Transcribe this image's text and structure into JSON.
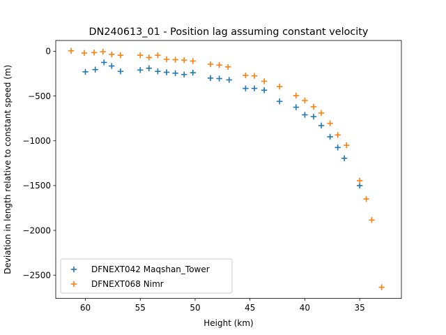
{
  "chart_data": {
    "type": "scatter",
    "title": "DN240613_01 - Position lag assuming constant velocity",
    "xlabel": "Height (km)",
    "ylabel": "Deviation in length relative to constant speed (m)",
    "xlim": [
      62.7,
      31.2
    ],
    "ylim": [
      -2760,
      120
    ],
    "x_invert": true,
    "xticks": [
      60,
      55,
      50,
      45,
      40,
      35
    ],
    "yticks": [
      0,
      -500,
      -1000,
      -1500,
      -2000,
      -2500
    ],
    "xtick_labels": [
      "60",
      "55",
      "50",
      "45",
      "40",
      "35"
    ],
    "ytick_labels": [
      "0",
      "−500",
      "−1000",
      "−1500",
      "−2000",
      "−2500"
    ],
    "marker": "+",
    "grid": false,
    "legend_position": "lower-left",
    "series": [
      {
        "name": "DFNEXT042 Maqshan_Tower",
        "color": "#1f77b4",
        "x": [
          60.0,
          59.1,
          58.3,
          57.6,
          56.8,
          55.0,
          54.2,
          53.4,
          52.6,
          51.8,
          51.0,
          50.2,
          48.6,
          47.8,
          46.9,
          45.4,
          44.6,
          43.7,
          42.3,
          40.8,
          40.0,
          39.2,
          38.5,
          37.7,
          37.0,
          36.4,
          35.0
        ],
        "y": [
          -230,
          -205,
          -125,
          -165,
          -225,
          -210,
          -190,
          -225,
          -235,
          -245,
          -260,
          -240,
          -300,
          -305,
          -320,
          -415,
          -415,
          -435,
          -560,
          -625,
          -710,
          -730,
          -830,
          -955,
          -1075,
          -1195,
          -1500
        ]
      },
      {
        "name": "DFNEXT068 Nimr",
        "color": "#ff7f0e",
        "x": [
          61.3,
          60.1,
          59.2,
          58.4,
          57.6,
          56.8,
          55.0,
          54.2,
          53.4,
          52.6,
          51.8,
          51.0,
          50.2,
          48.6,
          47.8,
          47.0,
          45.4,
          44.6,
          43.7,
          42.3,
          40.8,
          40.0,
          39.2,
          38.5,
          37.7,
          37.0,
          36.2,
          35.0,
          34.4,
          33.9,
          33.0
        ],
        "y": [
          5,
          -20,
          -15,
          -5,
          -35,
          -45,
          -45,
          -70,
          -45,
          -90,
          -95,
          -100,
          -110,
          -145,
          -155,
          -175,
          -270,
          -275,
          -335,
          -395,
          -495,
          -550,
          -620,
          -690,
          -805,
          -935,
          -1050,
          -1445,
          -1650,
          -1885,
          -2635
        ]
      }
    ]
  }
}
